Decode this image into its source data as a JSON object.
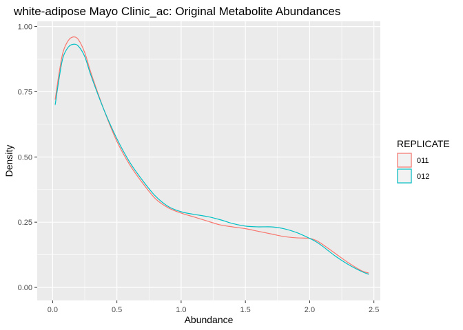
{
  "chart_data": {
    "type": "line",
    "title": "white-adipose Mayo Clinic_ac: Original Metabolite Abundances",
    "xlabel": "Abundance",
    "ylabel": "Density",
    "xlim": [
      -0.12,
      2.55
    ],
    "ylim": [
      -0.05,
      1.02
    ],
    "x_ticks": [
      0.0,
      0.5,
      1.0,
      1.5,
      2.0,
      2.5
    ],
    "x_tick_labels": [
      "0.0",
      "0.5",
      "1.0",
      "1.5",
      "2.0",
      "2.5"
    ],
    "y_ticks": [
      0.0,
      0.25,
      0.5,
      0.75,
      1.0
    ],
    "y_tick_labels": [
      "0.00",
      "0.25",
      "0.50",
      "0.75",
      "1.00"
    ],
    "grid": true,
    "legend": {
      "title": "REPLICATE",
      "placement": "right"
    },
    "series": [
      {
        "name": "011",
        "color": "#F8766D",
        "x": [
          0.02,
          0.05,
          0.08,
          0.12,
          0.16,
          0.2,
          0.25,
          0.3,
          0.4,
          0.5,
          0.6,
          0.7,
          0.8,
          0.9,
          1.0,
          1.1,
          1.2,
          1.3,
          1.4,
          1.5,
          1.6,
          1.7,
          1.8,
          1.9,
          2.0,
          2.05,
          2.1,
          2.2,
          2.3,
          2.4,
          2.46
        ],
        "y": [
          0.72,
          0.82,
          0.9,
          0.945,
          0.96,
          0.95,
          0.9,
          0.82,
          0.68,
          0.56,
          0.47,
          0.4,
          0.34,
          0.305,
          0.285,
          0.27,
          0.255,
          0.24,
          0.232,
          0.225,
          0.215,
          0.205,
          0.195,
          0.19,
          0.188,
          0.18,
          0.165,
          0.13,
          0.095,
          0.065,
          0.055
        ]
      },
      {
        "name": "012",
        "color": "#00BFC4",
        "x": [
          0.02,
          0.05,
          0.08,
          0.12,
          0.16,
          0.2,
          0.25,
          0.3,
          0.4,
          0.5,
          0.6,
          0.7,
          0.8,
          0.9,
          1.0,
          1.1,
          1.2,
          1.3,
          1.4,
          1.5,
          1.6,
          1.7,
          1.8,
          1.9,
          2.0,
          2.05,
          2.1,
          2.2,
          2.3,
          2.4,
          2.46
        ],
        "y": [
          0.7,
          0.8,
          0.88,
          0.92,
          0.932,
          0.925,
          0.885,
          0.81,
          0.68,
          0.57,
          0.48,
          0.41,
          0.35,
          0.31,
          0.29,
          0.28,
          0.272,
          0.26,
          0.245,
          0.235,
          0.232,
          0.232,
          0.225,
          0.21,
          0.188,
          0.175,
          0.158,
          0.12,
          0.088,
          0.062,
          0.05
        ]
      }
    ]
  }
}
